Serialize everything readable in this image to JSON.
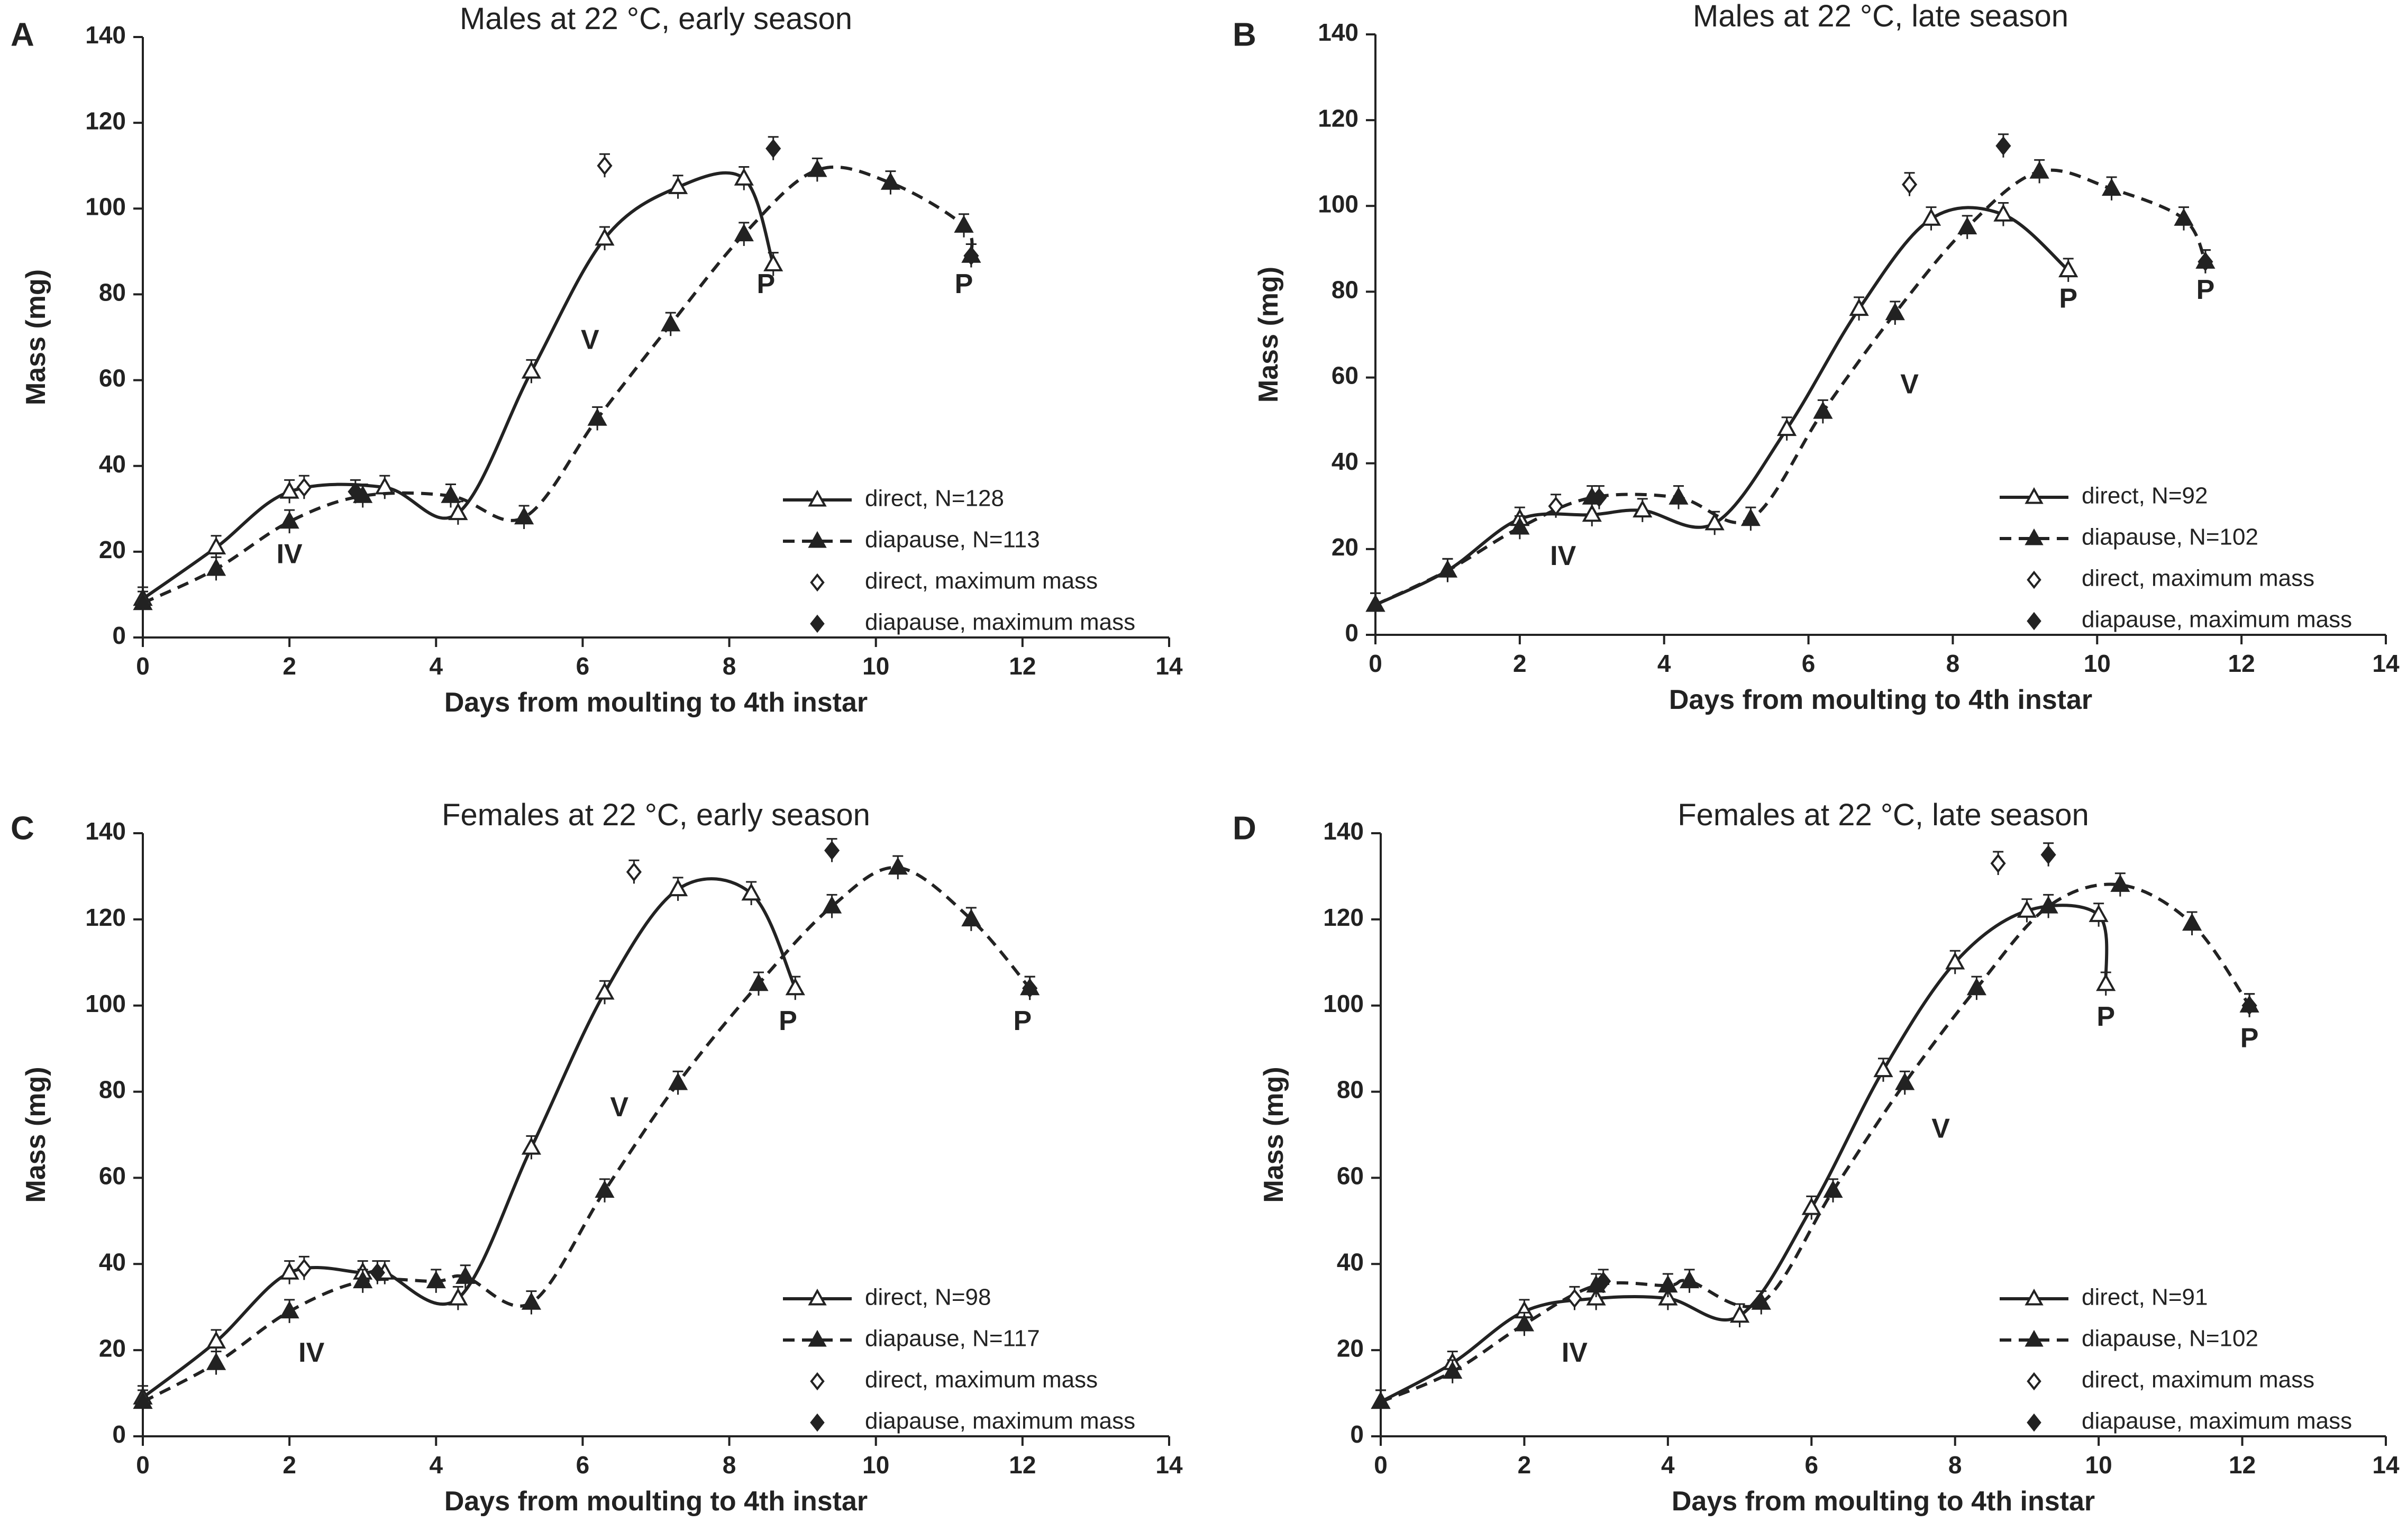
{
  "chart_data": [
    {
      "panel": "A",
      "type": "line",
      "title": "Males at 22 °C, early season",
      "xlabel": "Days from moulting to 4th instar",
      "ylabel": "Mass (mg)",
      "xlim": [
        0,
        14
      ],
      "ylim": [
        0,
        140
      ],
      "xticks": [
        "0",
        "2",
        "4",
        "6",
        "8",
        "10",
        "12",
        "14"
      ],
      "yticks": [
        "0",
        "20",
        "40",
        "60",
        "80",
        "100",
        "120",
        "140"
      ],
      "series": [
        {
          "name": "direct, N=128",
          "style": "solid",
          "marker": "open-triangle",
          "x": [
            0,
            1,
            2,
            3.3,
            4.3,
            5.3,
            6.3,
            7.3,
            8.2,
            8.6
          ],
          "y": [
            9,
            21,
            34,
            35,
            29,
            62,
            93,
            105,
            107,
            87
          ]
        },
        {
          "name": "diapause, N=113",
          "style": "dashed",
          "marker": "filled-triangle",
          "x": [
            0,
            1,
            2,
            3,
            4.2,
            5.2,
            6.2,
            7.2,
            8.2,
            9.2,
            10.2,
            11.2,
            11.3
          ],
          "y": [
            8,
            16,
            27,
            33,
            33,
            28,
            51,
            73,
            94,
            109,
            106,
            96,
            89
          ]
        },
        {
          "name": "direct, maximum mass",
          "marker": "open-diamond",
          "x": [
            2.2,
            6.3
          ],
          "y": [
            35,
            110
          ]
        },
        {
          "name": "diapause, maximum mass",
          "marker": "filled-diamond",
          "x": [
            2.9,
            8.6,
            11.3
          ],
          "y": [
            34,
            114,
            89
          ]
        }
      ],
      "annotations": [
        {
          "text": "IV",
          "x": 2,
          "y": 19
        },
        {
          "text": "V",
          "x": 6.1,
          "y": 69
        },
        {
          "text": "P",
          "x": 8.5,
          "y": 82
        },
        {
          "text": "P",
          "x": 11.2,
          "y": 82
        }
      ],
      "legend": {
        "position": "bottom-right",
        "entries": [
          "direct, N=128",
          "diapause, N=113",
          "direct, maximum mass",
          "diapause, maximum mass"
        ]
      }
    },
    {
      "panel": "B",
      "type": "line",
      "title": "Males at 22 °C, late season",
      "xlabel": "Days from moulting to 4th instar",
      "ylabel": "Mass (mg)",
      "xlim": [
        0,
        14
      ],
      "ylim": [
        0,
        140
      ],
      "xticks": [
        "0",
        "2",
        "4",
        "6",
        "8",
        "10",
        "12",
        "14"
      ],
      "yticks": [
        "0",
        "20",
        "40",
        "60",
        "80",
        "100",
        "120",
        "140"
      ],
      "series": [
        {
          "name": "direct, N=92",
          "style": "solid",
          "marker": "open-triangle",
          "x": [
            0,
            1,
            2,
            3,
            3.7,
            4.7,
            5.7,
            6.7,
            7.7,
            8.7,
            9.6
          ],
          "y": [
            7,
            15,
            27,
            28,
            29,
            26,
            48,
            76,
            97,
            98,
            85
          ]
        },
        {
          "name": "diapause, N=102",
          "style": "dashed",
          "marker": "filled-triangle",
          "x": [
            0,
            1,
            2,
            3,
            4.2,
            5.2,
            6.2,
            7.2,
            8.2,
            9.2,
            10.2,
            11.2,
            11.5
          ],
          "y": [
            7,
            15,
            25,
            32,
            32,
            27,
            52,
            75,
            95,
            108,
            104,
            97,
            87
          ]
        },
        {
          "name": "direct, maximum mass",
          "marker": "open-diamond",
          "x": [
            2.5,
            7.4
          ],
          "y": [
            30,
            105
          ]
        },
        {
          "name": "diapause, maximum mass",
          "marker": "filled-diamond",
          "x": [
            3.1,
            8.7,
            11.5
          ],
          "y": [
            32,
            114,
            87
          ]
        }
      ],
      "annotations": [
        {
          "text": "IV",
          "x": 2.6,
          "y": 18
        },
        {
          "text": "V",
          "x": 7.4,
          "y": 58
        },
        {
          "text": "P",
          "x": 9.6,
          "y": 78
        },
        {
          "text": "P",
          "x": 11.5,
          "y": 80
        }
      ],
      "legend": {
        "position": "bottom-right",
        "entries": [
          "direct, N=92",
          "diapause, N=102",
          "direct, maximum mass",
          "diapause, maximum mass"
        ]
      }
    },
    {
      "panel": "C",
      "type": "line",
      "title": "Females at 22 °C, early season",
      "xlabel": "Days from moulting to 4th instar",
      "ylabel": "Mass (mg)",
      "xlim": [
        0,
        14
      ],
      "ylim": [
        0,
        140
      ],
      "xticks": [
        "0",
        "2",
        "4",
        "6",
        "8",
        "10",
        "12",
        "14"
      ],
      "yticks": [
        "0",
        "20",
        "40",
        "60",
        "80",
        "100",
        "120",
        "140"
      ],
      "series": [
        {
          "name": "direct, N=98",
          "style": "solid",
          "marker": "open-triangle",
          "x": [
            0,
            1,
            2,
            3,
            3.3,
            4.3,
            5.3,
            6.3,
            7.3,
            8.3,
            8.9
          ],
          "y": [
            9,
            22,
            38,
            38,
            38,
            32,
            67,
            103,
            127,
            126,
            104
          ]
        },
        {
          "name": "diapause, N=117",
          "style": "dashed",
          "marker": "filled-triangle",
          "x": [
            0,
            1,
            2,
            3,
            4,
            4.4,
            5.3,
            6.3,
            7.3,
            8.4,
            9.4,
            10.3,
            11.3,
            12.1
          ],
          "y": [
            8,
            17,
            29,
            36,
            36,
            37,
            31,
            57,
            82,
            105,
            123,
            132,
            120,
            104
          ]
        },
        {
          "name": "direct, maximum mass",
          "marker": "open-diamond",
          "x": [
            2.2,
            6.7
          ],
          "y": [
            39,
            131
          ]
        },
        {
          "name": "diapause, maximum mass",
          "marker": "filled-diamond",
          "x": [
            3.2,
            9.4,
            12.1
          ],
          "y": [
            38,
            136,
            104
          ]
        }
      ],
      "annotations": [
        {
          "text": "IV",
          "x": 2.3,
          "y": 19
        },
        {
          "text": "V",
          "x": 6.5,
          "y": 76
        },
        {
          "text": "P",
          "x": 8.8,
          "y": 96
        },
        {
          "text": "P",
          "x": 12.0,
          "y": 96
        }
      ],
      "legend": {
        "position": "bottom-right",
        "entries": [
          "direct, N=98",
          "diapause, N=117",
          "direct, maximum mass",
          "diapause, maximum mass"
        ]
      }
    },
    {
      "panel": "D",
      "type": "line",
      "title": "Females at 22 °C, late season",
      "xlabel": "Days from moulting to 4th instar",
      "ylabel": "Mass (mg)",
      "xlim": [
        0,
        14
      ],
      "ylim": [
        0,
        140
      ],
      "xticks": [
        "0",
        "2",
        "4",
        "6",
        "8",
        "10",
        "12",
        "14"
      ],
      "yticks": [
        "0",
        "20",
        "40",
        "60",
        "80",
        "100",
        "120",
        "140"
      ],
      "series": [
        {
          "name": "direct, N=91",
          "style": "solid",
          "marker": "open-triangle",
          "x": [
            0,
            1,
            2,
            3,
            4,
            5,
            6,
            7,
            8,
            9,
            10,
            10.1
          ],
          "y": [
            8,
            17,
            29,
            32,
            32,
            28,
            53,
            85,
            110,
            122,
            121,
            105
          ]
        },
        {
          "name": "diapause, N=102",
          "style": "dashed",
          "marker": "filled-triangle",
          "x": [
            0,
            1,
            2,
            3,
            4,
            4.3,
            5.3,
            6.3,
            7.3,
            8.3,
            9.3,
            10.3,
            11.3,
            12.1
          ],
          "y": [
            8,
            15,
            26,
            35,
            35,
            36,
            31,
            57,
            82,
            104,
            123,
            128,
            119,
            100
          ]
        },
        {
          "name": "direct, maximum mass",
          "marker": "open-diamond",
          "x": [
            2.7,
            8.6
          ],
          "y": [
            32,
            133
          ]
        },
        {
          "name": "diapause, maximum mass",
          "marker": "filled-diamond",
          "x": [
            3.1,
            9.3,
            12.1
          ],
          "y": [
            36,
            135,
            100
          ]
        }
      ],
      "annotations": [
        {
          "text": "IV",
          "x": 2.7,
          "y": 19
        },
        {
          "text": "V",
          "x": 7.8,
          "y": 71
        },
        {
          "text": "P",
          "x": 10.1,
          "y": 97
        },
        {
          "text": "P",
          "x": 12.1,
          "y": 92
        }
      ],
      "legend": {
        "position": "bottom-right",
        "entries": [
          "direct, N=91",
          "diapause, N=102",
          "direct, maximum mass",
          "diapause, maximum mass"
        ]
      }
    }
  ]
}
